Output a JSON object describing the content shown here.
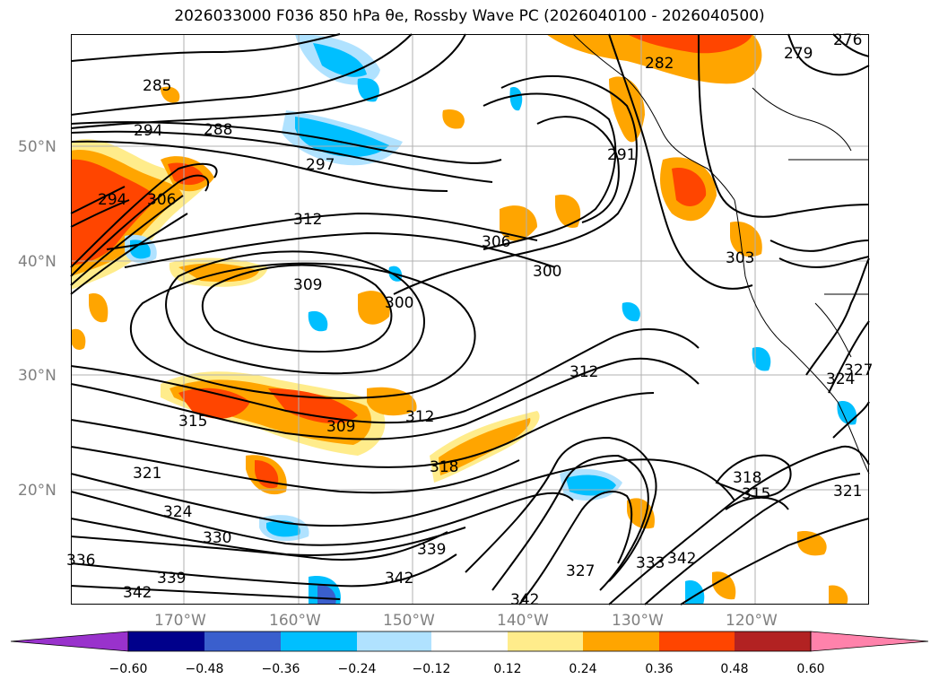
{
  "title": "2026033000 F036 850 hPa θe, Rossby Wave PC (2026040100 - 2026040500)",
  "lat_labels": [
    "50°N",
    "40°N",
    "30°N",
    "20°N"
  ],
  "lon_labels": [
    "170°W",
    "160°W",
    "150°W",
    "140°W",
    "130°W",
    "120°W"
  ],
  "contour_labels": [
    "285",
    "288",
    "294",
    "297",
    "279",
    "276",
    "282",
    "291",
    "294",
    "306",
    "312",
    "306",
    "303",
    "300",
    "309",
    "300",
    "312",
    "324",
    "327",
    "315",
    "309",
    "312",
    "321",
    "318",
    "318",
    "315",
    "321",
    "324",
    "330",
    "336",
    "339",
    "342",
    "339",
    "342",
    "342",
    "327",
    "333",
    "342"
  ],
  "colorbar": {
    "ticks": [
      "−0.60",
      "−0.48",
      "−0.36",
      "−0.24",
      "−0.12",
      "0.12",
      "0.24",
      "0.36",
      "0.48",
      "0.60"
    ],
    "colors": [
      "#9932cc",
      "#00008b",
      "#3a5fcd",
      "#00bfff",
      "#b0e2ff",
      "#ffffff",
      "#ffec8b",
      "#ffa500",
      "#ff4500",
      "#b22222",
      "#ff82ab"
    ]
  }
}
